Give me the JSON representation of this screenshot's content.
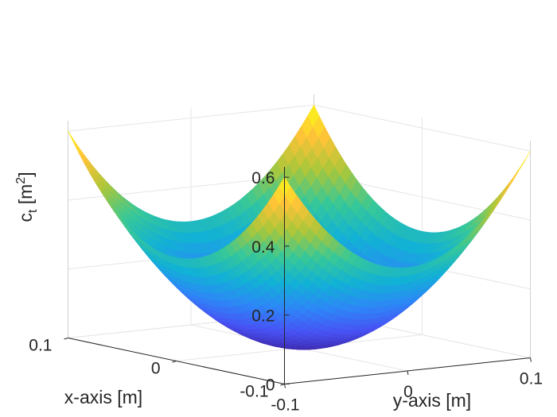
{
  "chart_data": {
    "type": "surface",
    "function": "z = 30 * (x^2 + y^2)",
    "colormap": "parula",
    "x": {
      "label": "x-axis [m]",
      "lim": [
        -0.1,
        0.1
      ],
      "ticks": [
        -0.1,
        0,
        0.1
      ],
      "tick_labels": [
        "-0.1",
        "0",
        "0.1"
      ]
    },
    "y": {
      "label": "y-axis [m]",
      "lim": [
        -0.1,
        0.1
      ],
      "ticks": [
        -0.1,
        0,
        0.1
      ],
      "tick_labels": [
        "-0.1",
        "0",
        "0.1"
      ]
    },
    "z": {
      "label_main": "c",
      "label_sub": "t",
      "label_unit_open": " [m",
      "label_sup": "2",
      "label_unit_close": "]",
      "lim": [
        0,
        0.6
      ],
      "ticks": [
        0,
        0.2,
        0.4,
        0.6
      ],
      "tick_labels": [
        "0",
        "0.2",
        "0.4",
        "0.6"
      ]
    },
    "grid": true,
    "mesh_resolution": 41,
    "sample_values": {
      "min_at_center": 0.0,
      "max_at_corners": 0.6
    }
  }
}
